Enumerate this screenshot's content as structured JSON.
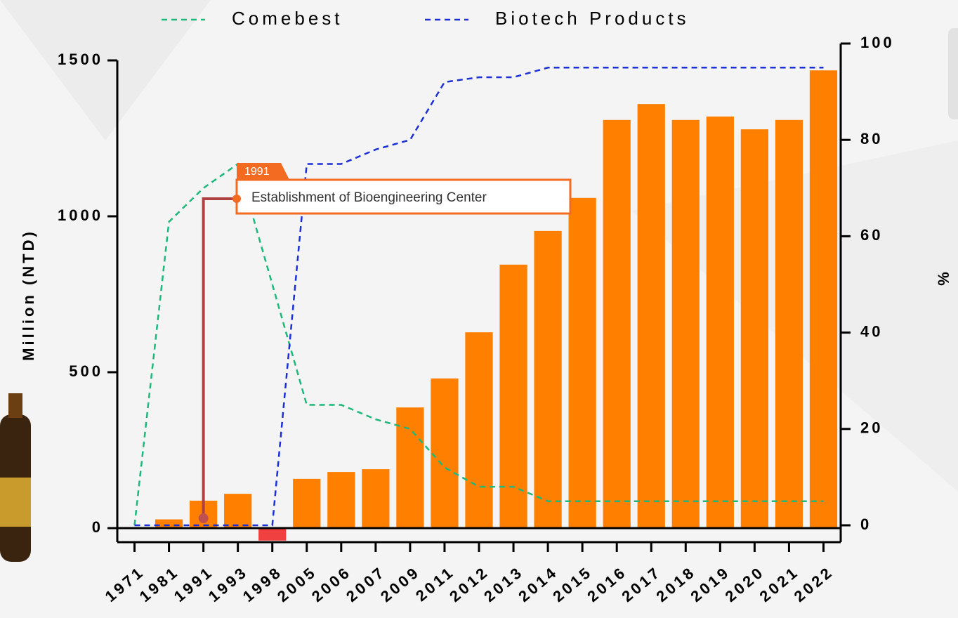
{
  "chart_data": {
    "type": "bar_line",
    "y_label": "Million (NTD)",
    "y2_label": "%",
    "categories": [
      "1971",
      "1981",
      "1991",
      "1993",
      "1998",
      "2005",
      "2006",
      "2007",
      "2009",
      "2011",
      "2012",
      "2013",
      "2014",
      "2015",
      "2016",
      "2017",
      "2018",
      "2019",
      "2020",
      "2021",
      "2022"
    ],
    "bars": {
      "color": "#ff8000",
      "negative_color": "#f04040",
      "values": [
        0,
        28,
        88,
        110,
        -40,
        158,
        180,
        189,
        387,
        480,
        628,
        845,
        953,
        1059,
        1309,
        1360,
        1309,
        1320,
        1279,
        1309,
        1468
      ]
    },
    "series": [
      {
        "name": "Comebest",
        "color": "#1db87a",
        "axis": "y2",
        "values": [
          0,
          63,
          70,
          75,
          50,
          25,
          25,
          22,
          20,
          12,
          8,
          8,
          5,
          5,
          5,
          5,
          5,
          5,
          5,
          5,
          5
        ]
      },
      {
        "name": "Biotech Products",
        "color": "#1a2fd6",
        "axis": "y2",
        "values": [
          0,
          0,
          0,
          0,
          0,
          75,
          75,
          78,
          80,
          92,
          93,
          93,
          95,
          95,
          95,
          95,
          95,
          95,
          95,
          95,
          95
        ]
      }
    ],
    "ylim": [
      -45,
      1500
    ],
    "yticks": [
      0,
      500,
      1000,
      1500
    ],
    "y2lim": [
      -3.5,
      100
    ],
    "y2ticks": [
      0,
      20,
      40,
      60,
      80,
      100
    ],
    "annotation": {
      "label": "1991",
      "text": "Establishment of Bioengineering Center",
      "category": 2
    }
  }
}
